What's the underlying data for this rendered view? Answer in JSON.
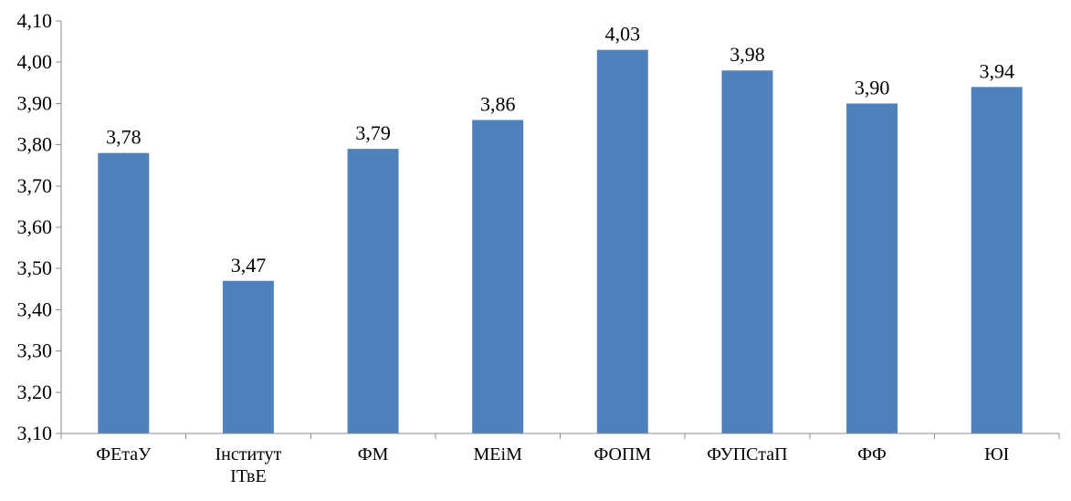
{
  "chart_data": {
    "type": "bar",
    "title": "",
    "xlabel": "",
    "ylabel": "",
    "categories": [
      [
        "ФЕтаУ"
      ],
      [
        "Інститут",
        "ІТвЕ"
      ],
      [
        "ФМ"
      ],
      [
        "МЕіМ"
      ],
      [
        "ФОПМ"
      ],
      [
        "ФУПСтаП"
      ],
      [
        "ФФ"
      ],
      [
        "ЮІ"
      ]
    ],
    "values": [
      3.78,
      3.47,
      3.79,
      3.86,
      4.03,
      3.98,
      3.9,
      3.94
    ],
    "value_labels": [
      "3,78",
      "3,47",
      "3,79",
      "3,86",
      "4,03",
      "3,98",
      "3,90",
      "3,94"
    ],
    "ylim": [
      3.1,
      4.1
    ],
    "yticks": [
      3.1,
      3.2,
      3.3,
      3.4,
      3.5,
      3.6,
      3.7,
      3.8,
      3.9,
      4.0,
      4.1
    ],
    "ytick_labels": [
      "3,10",
      "3,20",
      "3,30",
      "3,40",
      "3,50",
      "3,60",
      "3,70",
      "3,80",
      "3,90",
      "4,00",
      "4,10"
    ],
    "grid": false,
    "legend": "none",
    "bar_color": "#4f81bd",
    "axis_color": "#8c8c8c"
  }
}
